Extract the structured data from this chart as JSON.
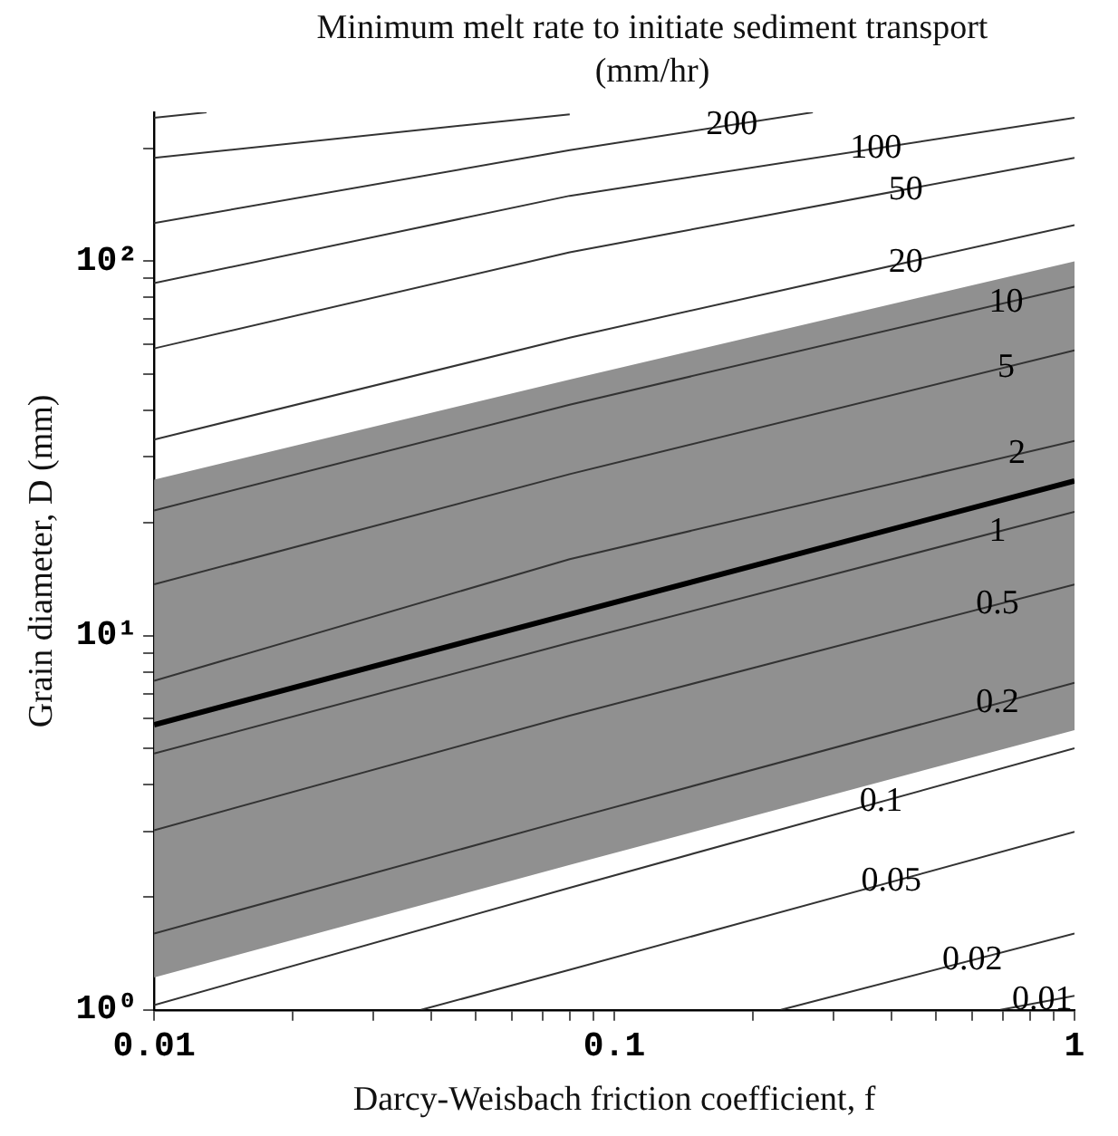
{
  "chart_data": {
    "type": "line",
    "title": "Minimum melt rate to initiate sediment transport (mm/hr)",
    "xlabel": "Darcy-Weisbach friction coefficient, f",
    "ylabel": "Grain diameter, D (mm)",
    "log": "xy",
    "xlim": [
      0.01,
      1
    ],
    "ylim": [
      1,
      250
    ],
    "xticks": [
      0.01,
      {
        "value": 0.02,
        "label": null
      },
      {
        "value": 0.03,
        "label": null
      },
      {
        "value": 0.04,
        "label": null
      },
      {
        "value": 0.05,
        "label": null
      },
      {
        "value": 0.06,
        "label": null
      },
      {
        "value": 0.07,
        "label": null
      },
      {
        "value": 0.08,
        "label": null
      },
      {
        "value": 0.09,
        "label": null
      },
      0.1,
      {
        "value": 0.2,
        "label": null
      },
      {
        "value": 0.3,
        "label": null
      },
      {
        "value": 0.4,
        "label": null
      },
      {
        "value": 0.5,
        "label": null
      },
      {
        "value": 0.6,
        "label": null
      },
      {
        "value": 0.7,
        "label": null
      },
      {
        "value": 0.8,
        "label": null
      },
      {
        "value": 0.9,
        "label": null
      },
      1
    ],
    "yticks": [
      {
        "value": 1,
        "label": "10⁰"
      },
      {
        "value": 2,
        "label": null
      },
      {
        "value": 3,
        "label": null
      },
      {
        "value": 4,
        "label": null
      },
      {
        "value": 5,
        "label": null
      },
      {
        "value": 6,
        "label": null
      },
      {
        "value": 7,
        "label": null
      },
      {
        "value": 8,
        "label": null
      },
      {
        "value": 9,
        "label": null
      },
      {
        "value": 10,
        "label": "10¹"
      },
      {
        "value": 20,
        "label": null
      },
      {
        "value": 30,
        "label": null
      },
      {
        "value": 40,
        "label": null
      },
      {
        "value": 50,
        "label": null
      },
      {
        "value": 60,
        "label": null
      },
      {
        "value": 70,
        "label": null
      },
      {
        "value": 80,
        "label": null
      },
      {
        "value": 90,
        "label": null
      },
      {
        "value": 100,
        "label": "10²"
      },
      {
        "value": 200,
        "label": null
      }
    ],
    "grid": false,
    "legend": false,
    "marker": "none",
    "line_style": "solid",
    "series": [
      {
        "color": "#333333",
        "x": [
          0.01,
          0.013
        ],
        "values": [
          241.7,
          250
        ]
      },
      {
        "color": "#333333",
        "x": [
          0.01,
          0.08
        ],
        "values": [
          189,
          247
        ]
      },
      {
        "color": "#333333",
        "x": [
          0.01,
          0.08,
          0.27
        ],
        "values": [
          126.5,
          198,
          250
        ]
      },
      {
        "color": "#333333",
        "x": [
          0.01,
          0.08,
          1
        ],
        "values": [
          87.4,
          149.6,
          241.7
        ]
      },
      {
        "color": "#333333",
        "x": [
          0.01,
          0.08,
          1
        ],
        "values": [
          58.5,
          105.7,
          189
        ]
      },
      {
        "color": "#333333",
        "x": [
          0.01,
          0.08,
          1
        ],
        "values": [
          33.4,
          62.5,
          125
        ]
      },
      {
        "color": "#333333",
        "x": [
          0.01,
          0.08,
          1
        ],
        "values": [
          21.6,
          41.4,
          85.5
        ]
      },
      {
        "color": "#333333",
        "x": [
          0.01,
          0.08,
          1
        ],
        "values": [
          13.7,
          27,
          57.8
        ]
      },
      {
        "color": "#333333",
        "x": [
          0.01,
          0.08,
          1
        ],
        "values": [
          7.57,
          16,
          33.1
        ]
      },
      {
        "color": "#333333",
        "x": [
          0.01,
          0.08,
          1
        ],
        "values": [
          4.84,
          9.57,
          21.4
        ]
      },
      {
        "color": "#333333",
        "x": [
          0.01,
          0.08,
          1
        ],
        "values": [
          3.02,
          6.11,
          13.7
        ]
      },
      {
        "color": "#333333",
        "x": [
          0.01,
          0.08,
          1
        ],
        "values": [
          1.6,
          3.23,
          7.48
        ]
      },
      {
        "color": "#333333",
        "x": [
          0.01,
          0.08,
          1
        ],
        "values": [
          1.03,
          2.12,
          5.0
        ]
      },
      {
        "color": "#333333",
        "x": [
          0.038,
          0.08,
          1
        ],
        "values": [
          1,
          1.28,
          2.99
        ]
      },
      {
        "color": "#333333",
        "x": [
          0.23,
          1
        ],
        "values": [
          1,
          1.6
        ]
      },
      {
        "color": "#333333",
        "x": [
          0.69,
          1
        ],
        "values": [
          1,
          1.09
        ]
      },
      {
        "color": "#000000",
        "x": [
          0.01,
          0.08,
          1
        ],
        "values": [
          5.78,
          11.4,
          25.9
        ],
        "lower": [
          1.22,
          2.44,
          5.59
        ],
        "upper": [
          26.1,
          48.3,
          100
        ]
      }
    ],
    "annotations": [
      {
        "text": "200",
        "x": 0.18,
        "y": 231
      },
      {
        "text": "100",
        "x": 0.37,
        "y": 200
      },
      {
        "text": "50",
        "x": 0.43,
        "y": 155
      },
      {
        "text": "20",
        "x": 0.43,
        "y": 99
      },
      {
        "text": "10",
        "x": 0.71,
        "y": 77.5
      },
      {
        "text": "5",
        "x": 0.71,
        "y": 52
      },
      {
        "text": "2",
        "x": 0.75,
        "y": 30.5
      },
      {
        "text": "1",
        "x": 0.68,
        "y": 18.9
      },
      {
        "text": "0.5",
        "x": 0.68,
        "y": 12.1
      },
      {
        "text": "0.2",
        "x": 0.68,
        "y": 6.59
      },
      {
        "text": "0.1",
        "x": 0.38,
        "y": 3.6
      },
      {
        "text": "0.05",
        "x": 0.4,
        "y": 2.2
      },
      {
        "text": "0.02",
        "x": 0.6,
        "y": 1.36
      },
      {
        "text": "0.01",
        "x": 0.85,
        "y": 1.06
      }
    ]
  }
}
